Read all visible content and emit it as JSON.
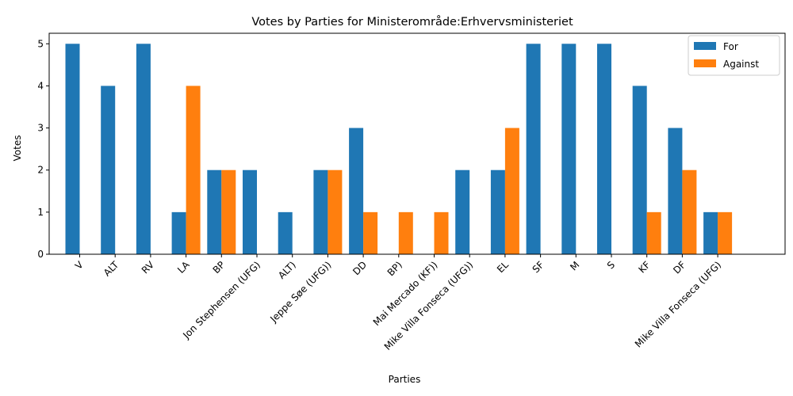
{
  "chart_data": {
    "type": "bar",
    "title": "Votes by Parties for Ministerområde:Erhvervsministeriet",
    "xlabel": "Parties",
    "ylabel": "Votes",
    "ylim": [
      0,
      5.25
    ],
    "yticks": [
      0,
      1,
      2,
      3,
      4,
      5
    ],
    "grid": false,
    "legend_position": "top-right",
    "categories": [
      "V",
      "ALT",
      "RV",
      "LA",
      "BP",
      "Jon Stephensen (UFG)",
      "ALT)",
      "Jeppe Søe (UFG))",
      "DD",
      "BP)",
      "Mai Mercado (KF))",
      "Mike Villa Fonseca (UFG))",
      "EL",
      "SF",
      "M",
      "S",
      "KF",
      "DF",
      "Mike Villa Fonseca (UFG)"
    ],
    "series": [
      {
        "name": "For",
        "color": "#1f77b4",
        "values": [
          5,
          4,
          5,
          1,
          2,
          2,
          1,
          2,
          3,
          0,
          0,
          2,
          2,
          5,
          5,
          5,
          4,
          3,
          1
        ]
      },
      {
        "name": "Against",
        "color": "#ff7f0e",
        "values": [
          0,
          0,
          0,
          4,
          2,
          0,
          0,
          2,
          1,
          1,
          1,
          0,
          3,
          0,
          0,
          0,
          1,
          2,
          1
        ]
      }
    ]
  }
}
